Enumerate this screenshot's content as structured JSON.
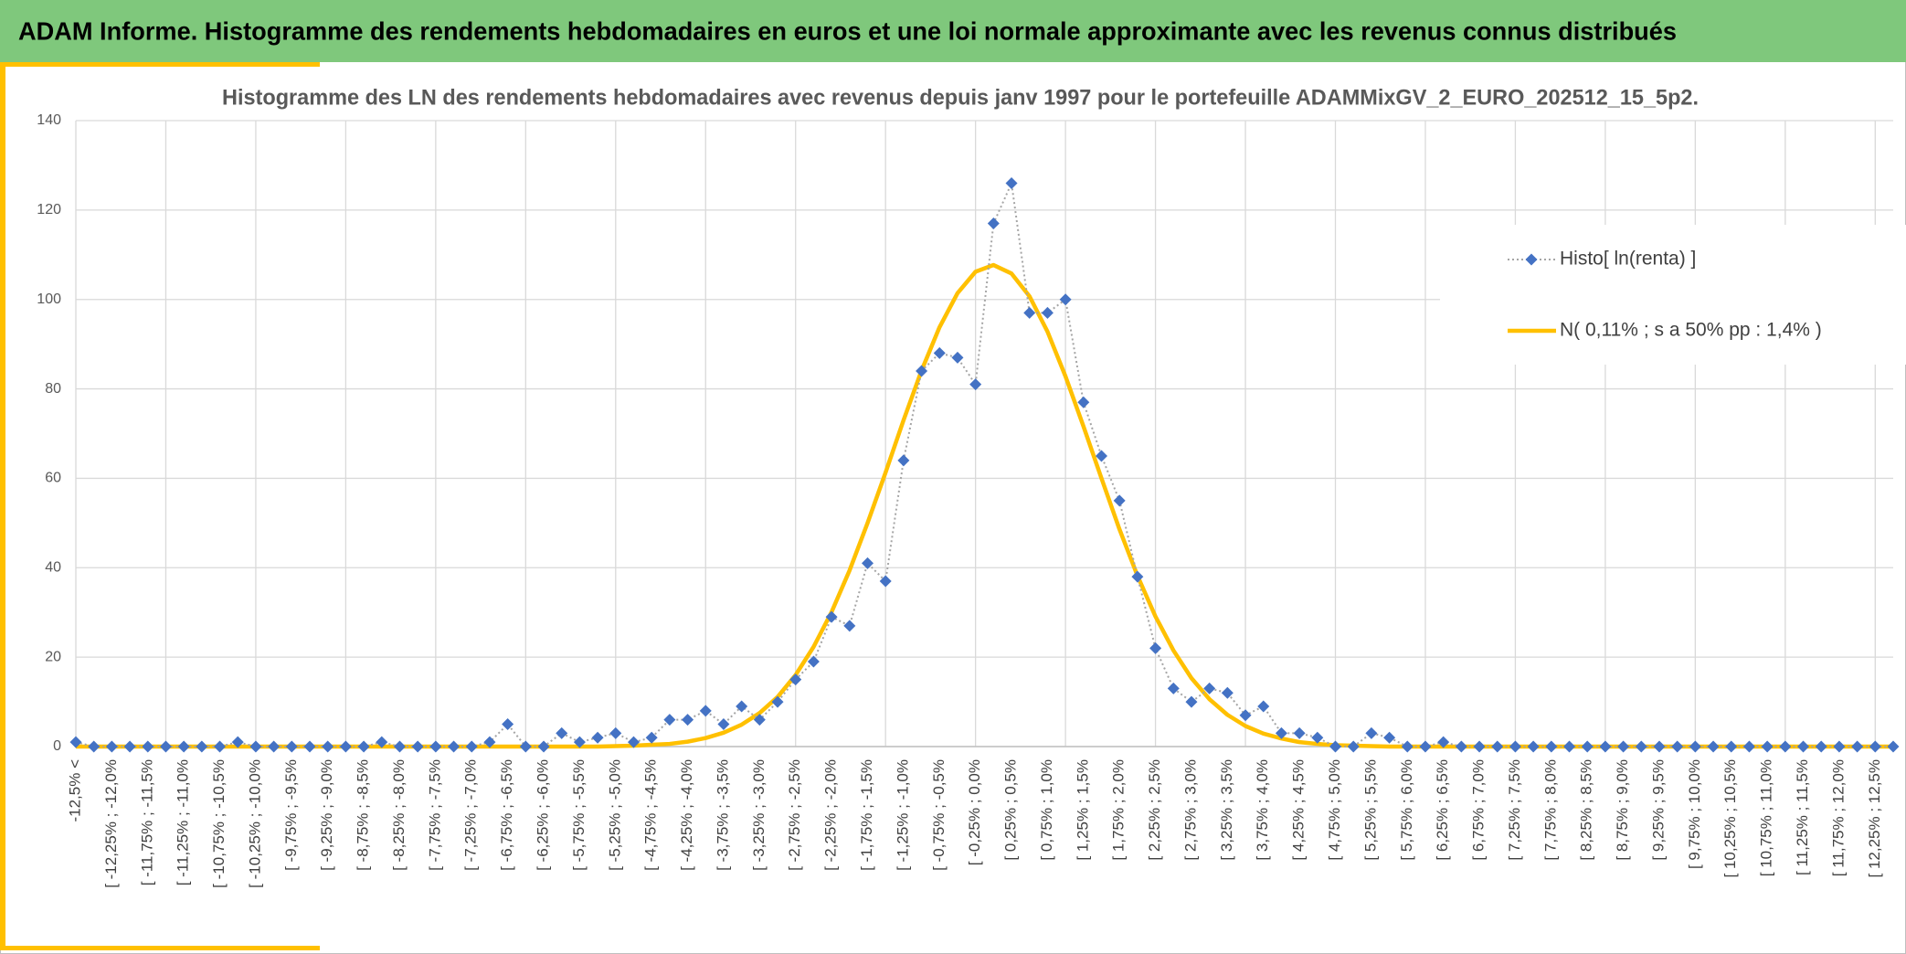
{
  "header": {
    "title": "ADAM Informe. Histogramme des rendements hebdomadaires en euros et une loi normale approximante avec les revenus connus distribués"
  },
  "chart_data": {
    "type": "line",
    "title": "Histogramme des LN des rendements hebdomadaires avec revenus depuis janv 1997 pour le portefeuille ADAMMixGV_2_EURO_202512_15_5p2.",
    "categories": [
      "-12,5% <",
      null,
      "[ -12,25% ; -12,0%",
      null,
      "[ -11,75% ; -11,5%",
      null,
      "[ -11,25% ; -11,0%",
      null,
      "[ -10,75% ; -10,5%",
      null,
      "[ -10,25% ; -10,0%",
      null,
      "[ -9,75% ; -9,5%",
      null,
      "[ -9,25% ; -9,0%",
      null,
      "[ -8,75% ; -8,5%",
      null,
      "[ -8,25% ; -8,0%",
      null,
      "[ -7,75% ; -7,5%",
      null,
      "[ -7,25% ; -7,0%",
      null,
      "[ -6,75% ; -6,5%",
      null,
      "[ -6,25% ; -6,0%",
      null,
      "[ -5,75% ; -5,5%",
      null,
      "[ -5,25% ; -5,0%",
      null,
      "[ -4,75% ; -4,5%",
      null,
      "[ -4,25% ; -4,0%",
      null,
      "[ -3,75% ; -3,5%",
      null,
      "[ -3,25% ; -3,0%",
      null,
      "[ -2,75% ; -2,5%",
      null,
      "[ -2,25% ; -2,0%",
      null,
      "[ -1,75% ; -1,5%",
      null,
      "[ -1,25% ; -1,0%",
      null,
      "[ -0,75% ; -0,5%",
      null,
      "[ -0,25% ; 0,0%",
      null,
      "[ 0,25% ; 0,5%",
      null,
      "[ 0,75% ; 1,0%",
      null,
      "[ 1,25% ; 1,5%",
      null,
      "[ 1,75% ; 2,0%",
      null,
      "[ 2,25% ; 2,5%",
      null,
      "[ 2,75% ; 3,0%",
      null,
      "[ 3,25% ; 3,5%",
      null,
      "[ 3,75% ; 4,0%",
      null,
      "[ 4,25% ; 4,5%",
      null,
      "[ 4,75% ; 5,0%",
      null,
      "[ 5,25% ; 5,5%",
      null,
      "[ 5,75% ; 6,0%",
      null,
      "[ 6,25% ; 6,5%",
      null,
      "[ 6,75% ; 7,0%",
      null,
      "[ 7,25% ; 7,5%",
      null,
      "[ 7,75% ; 8,0%",
      null,
      "[ 8,25% ; 8,5%",
      null,
      "[ 8,75% ; 9,0%",
      null,
      "[ 9,25% ; 9,5%",
      null,
      "[ 9,75% ; 10,0%",
      null,
      "[ 10,25% ; 10,5%",
      null,
      "[ 10,75% ; 11,0%",
      null,
      "[ 11,25% ; 11,5%",
      null,
      "[ 11,75% ; 12,0%",
      null,
      "[ 12,25% ; 12,5%",
      null
    ],
    "series": [
      {
        "name": "Histo[ ln(renta) ]",
        "color": "#4472c4",
        "line_color": "#a5a5a5",
        "marker": "diamond",
        "values": [
          1,
          0,
          0,
          0,
          0,
          0,
          0,
          0,
          0,
          1,
          0,
          0,
          0,
          0,
          0,
          0,
          0,
          1,
          0,
          0,
          0,
          0,
          0,
          1,
          5,
          0,
          0,
          3,
          1,
          2,
          3,
          1,
          2,
          6,
          6,
          8,
          5,
          9,
          6,
          10,
          15,
          19,
          29,
          27,
          41,
          37,
          64,
          84,
          88,
          87,
          81,
          117,
          126,
          97,
          97,
          100,
          77,
          65,
          55,
          38,
          22,
          13,
          10,
          13,
          12,
          7,
          9,
          3,
          3,
          2,
          0,
          0,
          3,
          2,
          0,
          0,
          1,
          0,
          0,
          0,
          0,
          0,
          0,
          0,
          0,
          0,
          0,
          0,
          0,
          0,
          0,
          0,
          0,
          0,
          0,
          0,
          0,
          0,
          0,
          0,
          0,
          0
        ]
      },
      {
        "name": "N( 0,11% ; s a 50% pp : 1,4% )",
        "color": "#ffc000",
        "values": [
          0,
          0,
          0,
          0,
          0,
          0,
          0,
          0,
          0,
          0,
          0,
          0,
          0,
          0,
          0,
          0,
          0,
          0,
          0,
          0,
          0,
          0,
          0,
          0,
          0,
          0,
          0,
          0,
          0,
          0,
          0.1,
          0.2,
          0.4,
          0.6,
          1.1,
          1.9,
          3.1,
          4.9,
          7.5,
          11.1,
          16.0,
          22.3,
          30.1,
          39.4,
          50.0,
          61.3,
          73.0,
          84.1,
          93.8,
          101.4,
          106.2,
          107.7,
          105.8,
          100.7,
          92.8,
          82.8,
          71.6,
          60.0,
          48.6,
          38.2,
          29.1,
          21.5,
          15.3,
          10.6,
          7.1,
          4.6,
          2.9,
          1.8,
          1.0,
          0.6,
          0.3,
          0.2,
          0.1,
          0,
          0,
          0,
          0,
          0,
          0,
          0,
          0,
          0,
          0,
          0,
          0,
          0,
          0,
          0,
          0,
          0,
          0,
          0,
          0,
          0,
          0,
          0,
          0,
          0,
          0,
          0,
          0,
          0
        ]
      }
    ],
    "ylim": [
      0,
      140
    ],
    "yticks": [
      0,
      20,
      40,
      60,
      80,
      100,
      120,
      140
    ],
    "grid": true,
    "legend": "right"
  }
}
